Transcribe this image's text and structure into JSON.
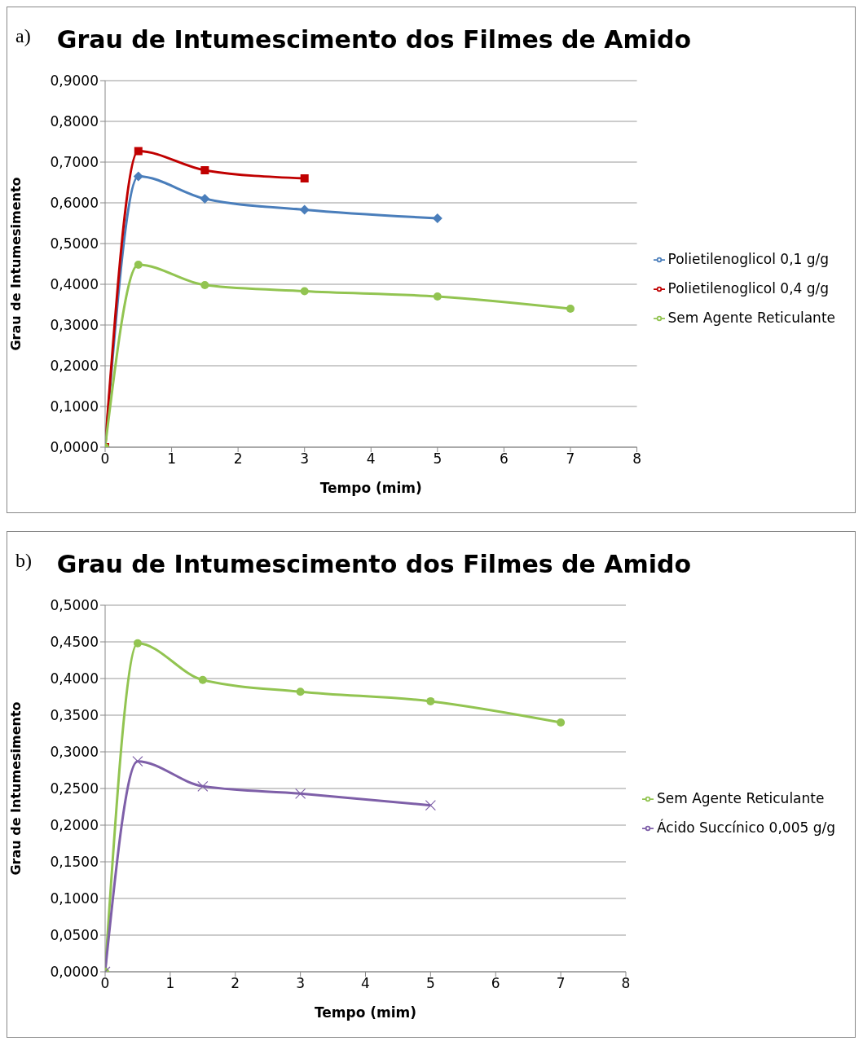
{
  "chart_data": [
    {
      "type": "line",
      "title": "Grau de Intumescimento dos Filmes de Amido",
      "xlabel": "Tempo (mim)",
      "ylabel": "Grau de Intumesimento",
      "annotations": [
        "a)"
      ],
      "xlim": [
        0,
        8
      ],
      "xticks": [
        0,
        1,
        2,
        3,
        4,
        5,
        6,
        7,
        8
      ],
      "ylim": [
        0,
        0.9
      ],
      "yticks": [
        {
          "value": 0,
          "label": "0,0000"
        },
        {
          "value": 0.1,
          "label": "0,1000"
        },
        {
          "value": 0.2,
          "label": "0,2000"
        },
        {
          "value": 0.3,
          "label": "0,3000"
        },
        {
          "value": 0.4,
          "label": "0,4000"
        },
        {
          "value": 0.5,
          "label": "0,5000"
        },
        {
          "value": 0.6,
          "label": "0,6000"
        },
        {
          "value": 0.7,
          "label": "0,7000"
        },
        {
          "value": 0.8,
          "label": "0,8000"
        },
        {
          "value": 0.9,
          "label": "0,9000"
        }
      ],
      "grid": "y",
      "legend": "right",
      "series": [
        {
          "name": "Polietilenoglicol 0,1 g/g",
          "color": "#4a7ebb",
          "marker": "diamond",
          "x": [
            0,
            0.5,
            1.5,
            3,
            5
          ],
          "values": [
            0,
            0.665,
            0.61,
            0.583,
            0.562
          ]
        },
        {
          "name": "Polietilenoglicol 0,4 g/g",
          "color": "#c00000",
          "marker": "square",
          "x": [
            0,
            0.5,
            1.5,
            3
          ],
          "values": [
            0,
            0.727,
            0.68,
            0.66
          ]
        },
        {
          "name": "Sem Agente Reticulante",
          "color": "#92c451",
          "marker": "circle",
          "x": [
            0,
            0.5,
            1.5,
            3,
            5,
            7
          ],
          "values": [
            0,
            0.448,
            0.398,
            0.383,
            0.37,
            0.34
          ]
        }
      ]
    },
    {
      "type": "line",
      "title": "Grau de Intumescimento dos Filmes de Amido",
      "xlabel": "Tempo (mim)",
      "ylabel": "Grau de Intumesimento",
      "annotations": [
        "b)"
      ],
      "xlim": [
        0,
        8
      ],
      "xticks": [
        0,
        1,
        2,
        3,
        4,
        5,
        6,
        7,
        8
      ],
      "ylim": [
        0,
        0.5
      ],
      "yticks": [
        {
          "value": 0,
          "label": "0,0000"
        },
        {
          "value": 0.05,
          "label": "0,0500"
        },
        {
          "value": 0.1,
          "label": "0,1000"
        },
        {
          "value": 0.15,
          "label": "0,1500"
        },
        {
          "value": 0.2,
          "label": "0,2000"
        },
        {
          "value": 0.25,
          "label": "0,2500"
        },
        {
          "value": 0.3,
          "label": "0,3000"
        },
        {
          "value": 0.35,
          "label": "0,3500"
        },
        {
          "value": 0.4,
          "label": "0,4000"
        },
        {
          "value": 0.45,
          "label": "0,4500"
        },
        {
          "value": 0.5,
          "label": "0,5000"
        }
      ],
      "grid": "y",
      "legend": "right",
      "series": [
        {
          "name": "Sem Agente Reticulante",
          "color": "#92c451",
          "marker": "circle",
          "x": [
            0,
            0.5,
            1.5,
            3,
            5,
            7
          ],
          "values": [
            0,
            0.448,
            0.398,
            0.382,
            0.369,
            0.34
          ]
        },
        {
          "name": "Ácido Succínico 0,005 g/g",
          "color": "#7e5fa8",
          "marker": "cross",
          "x": [
            0,
            0.5,
            1.5,
            3,
            5
          ],
          "values": [
            0,
            0.287,
            0.253,
            0.243,
            0.227
          ]
        }
      ]
    }
  ]
}
